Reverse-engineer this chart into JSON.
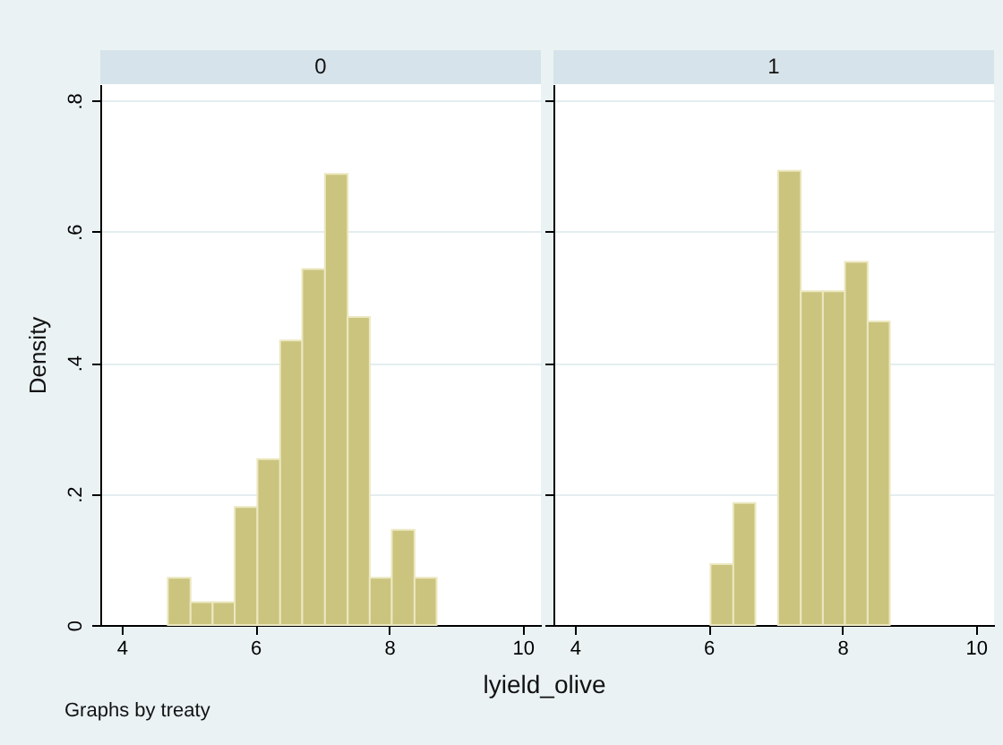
{
  "chart_data": [
    {
      "type": "histogram",
      "title": "0",
      "ylabel": "Density",
      "xlabel": "lyield_olive",
      "annotations": [
        "Graphs by treaty"
      ],
      "color": "#cbc47f",
      "grid": "y",
      "bins": [
        4.69,
        5.03,
        5.36,
        5.69,
        6.03,
        6.37,
        6.7,
        7.04,
        7.38,
        7.71,
        8.04,
        8.38,
        8.71
      ],
      "values": [
        0.072,
        0.035,
        0.035,
        0.18,
        0.253,
        0.434,
        0.543,
        0.688,
        0.47,
        0.072,
        0.145,
        0.072
      ],
      "xlim": [
        3.68,
        10.27
      ],
      "xticks": [
        4,
        6,
        8,
        10
      ],
      "ylim": [
        0,
        0.825
      ],
      "yticks": [
        0,
        {
          "value": 0.2,
          "label": ".2"
        },
        {
          "value": 0.4,
          "label": ".4"
        },
        {
          "value": 0.6,
          "label": ".6"
        },
        {
          "value": 0.8,
          "label": ".8"
        }
      ]
    },
    {
      "type": "histogram",
      "title": "1",
      "color": "#cbc47f",
      "grid": "y",
      "tick_labels": "x",
      "bins": [
        6.03,
        6.37,
        6.7,
        7.04,
        7.38,
        7.71,
        8.04,
        8.38,
        8.71
      ],
      "values": [
        0.093,
        0.186,
        0,
        0.693,
        0.509,
        0.509,
        0.554,
        0.463
      ],
      "xlim": [
        3.68,
        10.27
      ],
      "xticks": [
        4,
        6,
        8,
        10
      ],
      "ylim": [
        0,
        0.825
      ],
      "yticks": [
        {
          "value": 0,
          "label": null
        },
        {
          "value": 0.2,
          "label": null
        },
        {
          "value": 0.4,
          "label": null
        },
        {
          "value": 0.6,
          "label": null
        },
        {
          "value": 0.8,
          "label": null
        }
      ]
    }
  ]
}
